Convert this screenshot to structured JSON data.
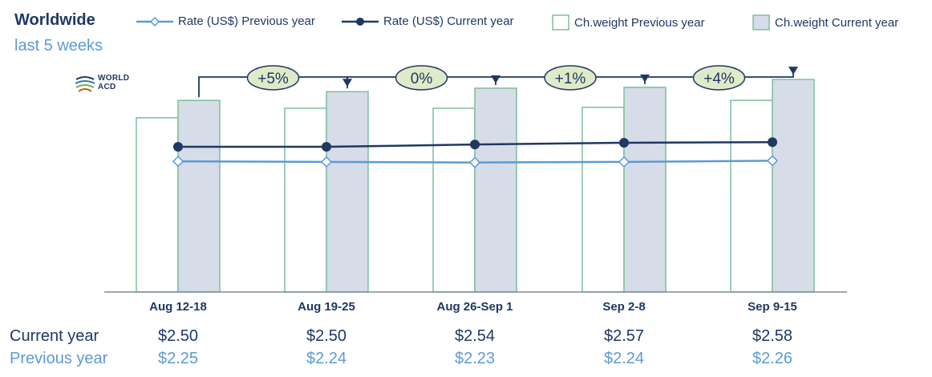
{
  "header": {
    "title": "Worldwide",
    "subtitle": "last 5 weeks"
  },
  "logo": {
    "line1": "WORLD",
    "line2": "ACD"
  },
  "legend": [
    {
      "label": "Rate (US$) Previous year"
    },
    {
      "label": "Rate (US$) Current year"
    },
    {
      "label": "Ch.weight Previous year"
    },
    {
      "label": "Ch.weight Current year"
    }
  ],
  "colors": {
    "rate_prev": "#5b9bd5",
    "rate_cur": "#1f3864",
    "bar_prev_fill": "#ffffff",
    "bar_cur_fill": "#d6dce8",
    "bar_border": "#7fbf9a",
    "callout_fill": "#dfeac8",
    "callout_border": "#1f3864"
  },
  "table": {
    "current_label": "Current year",
    "previous_label": "Previous year",
    "current_values": [
      "$2.50",
      "$2.50",
      "$2.54",
      "$2.57",
      "$2.58"
    ],
    "previous_values": [
      "$2.25",
      "$2.24",
      "$2.23",
      "$2.24",
      "$2.26"
    ]
  },
  "chart_data": {
    "type": "bar",
    "categories": [
      "Aug 12-18",
      "Aug 19-25",
      "Aug 26-Sep 1",
      "Sep 2-8",
      "Sep 9-15"
    ],
    "series": [
      {
        "name": "Ch.weight Previous year",
        "kind": "bar",
        "values": [
          100,
          105.5,
          105.5,
          106,
          110
        ]
      },
      {
        "name": "Ch.weight Current year",
        "kind": "bar",
        "values": [
          110,
          115,
          117,
          117.5,
          122
        ]
      },
      {
        "name": "Rate (US$) Previous year",
        "kind": "line",
        "values": [
          2.25,
          2.24,
          2.23,
          2.24,
          2.26
        ]
      },
      {
        "name": "Rate (US$) Current year",
        "kind": "line",
        "values": [
          2.5,
          2.5,
          2.54,
          2.57,
          2.58
        ]
      }
    ],
    "bar_ylim": [
      0,
      140
    ],
    "rate_ylim": [
      0,
      4.2
    ],
    "changes": [
      "+5%",
      "0%",
      "+1%",
      "+4%"
    ],
    "grid": false,
    "legend_position": "top"
  }
}
